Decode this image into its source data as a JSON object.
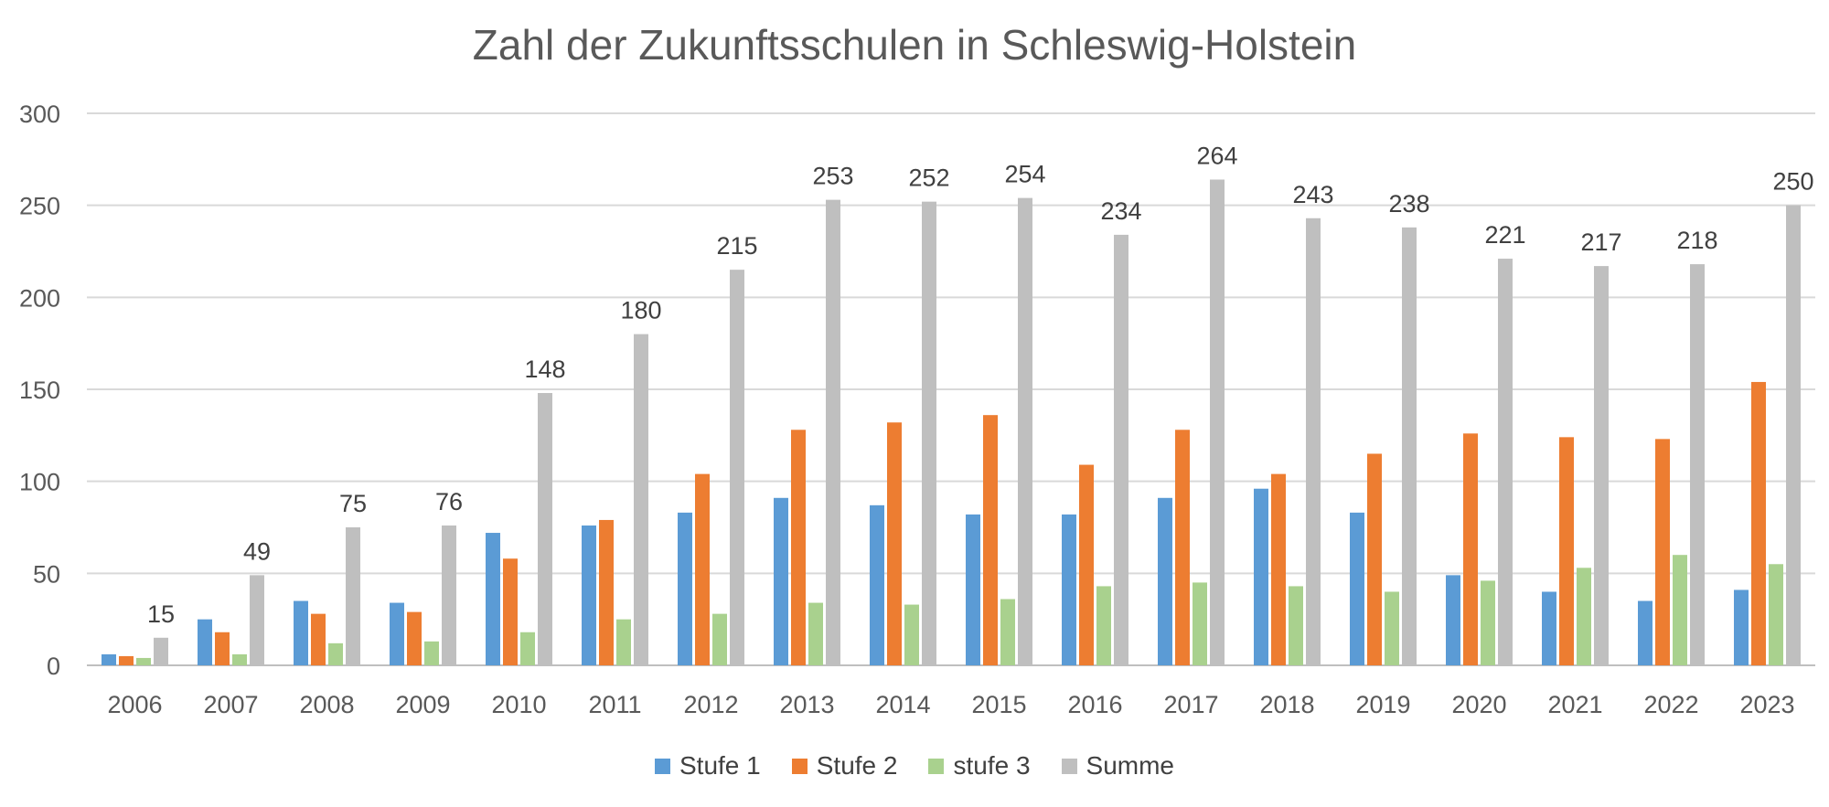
{
  "chart_data": {
    "type": "bar",
    "title": "Zahl der Zukunftsschulen in Schleswig-Holstein",
    "xlabel": "",
    "ylabel": "",
    "ylim": [
      0,
      300
    ],
    "yticks": [
      0,
      50,
      100,
      150,
      200,
      250,
      300
    ],
    "grid": true,
    "legend_position": "bottom",
    "categories": [
      "2006",
      "2007",
      "2008",
      "2009",
      "2010",
      "2011",
      "2012",
      "2013",
      "2014",
      "2015",
      "2016",
      "2017",
      "2018",
      "2019",
      "2020",
      "2021",
      "2022",
      "2023"
    ],
    "series": [
      {
        "name": "Stufe 1",
        "color": "#5B9BD5",
        "values": [
          6,
          25,
          35,
          34,
          72,
          76,
          83,
          91,
          87,
          82,
          82,
          91,
          96,
          83,
          49,
          40,
          35,
          41
        ]
      },
      {
        "name": "Stufe 2",
        "color": "#ED7D31",
        "values": [
          5,
          18,
          28,
          29,
          58,
          79,
          104,
          128,
          132,
          136,
          109,
          128,
          104,
          115,
          126,
          124,
          123,
          154
        ]
      },
      {
        "name": "stufe 3",
        "color": "#A9D18E",
        "values": [
          4,
          6,
          12,
          13,
          18,
          25,
          28,
          34,
          33,
          36,
          43,
          45,
          43,
          40,
          46,
          53,
          60,
          55
        ]
      },
      {
        "name": "Summe",
        "color": "#BFBFBF",
        "values": [
          15,
          49,
          75,
          76,
          148,
          180,
          215,
          253,
          252,
          254,
          234,
          264,
          243,
          238,
          221,
          217,
          218,
          250
        ],
        "data_labels": true
      }
    ]
  }
}
